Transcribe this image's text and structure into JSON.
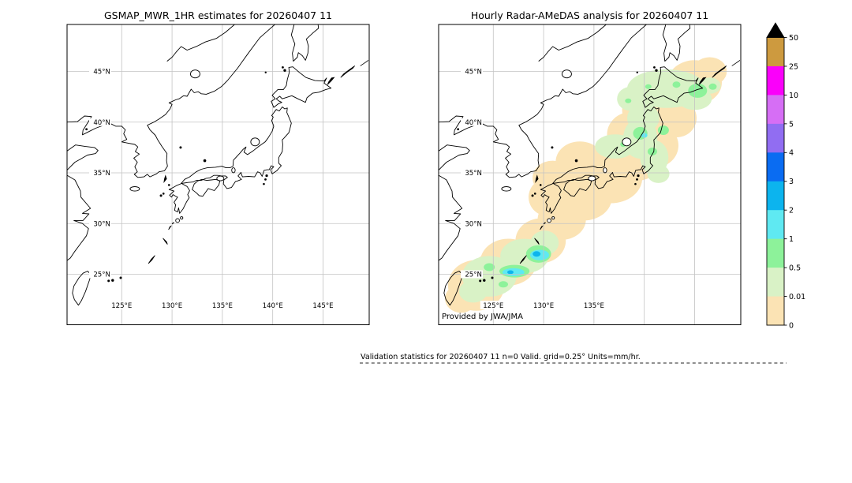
{
  "left_panel": {
    "title": "GSMAP_MWR_1HR estimates for 20260407 11",
    "y_tick_labels": [
      "45°N",
      "40°N",
      "35°N",
      "30°N",
      "25°N"
    ],
    "x_tick_labels": [
      "125°E",
      "130°E",
      "135°E",
      "140°E",
      "145°E"
    ]
  },
  "right_panel": {
    "title": "Hourly Radar-AMeDAS analysis for 20260407 11",
    "y_tick_labels": [
      "45°N",
      "40°N",
      "35°N",
      "30°N",
      "25°N"
    ],
    "x_tick_labels": [
      "125°E",
      "130°E",
      "135°E"
    ],
    "credit": "Provided by JWA/JMA"
  },
  "caption": {
    "text": "Validation statistics for 20260407 11  n=0 Valid. grid=0.25° Units=mm/hr."
  },
  "colorbar": {
    "tick_labels": [
      "50",
      "25",
      "10",
      "5",
      "4",
      "3",
      "2",
      "1",
      "0.5",
      "0.01",
      "0"
    ],
    "segment_colors_top_to_bottom": [
      "#cd9a3f",
      "#fa00fa",
      "#d66ef5",
      "#916df2",
      "#0a6cf2",
      "#0cb4ee",
      "#5fe9f2",
      "#8df29a",
      "#d9f2c6",
      "#fbe3b4"
    ],
    "overflow_triangle_color": "#000000",
    "outline_color": "#000000"
  },
  "chart_data": {
    "type": "heatmap",
    "title_left": "GSMAP_MWR_1HR estimates for 20260407 11",
    "title_right": "Hourly Radar-AMeDAS analysis for 20260407 11",
    "description": "Two map panels over Japan on identical plate-carree grids. Left panel (GSMaP MWR 1HR estimates) shows no precipitation (empty map, n=0). Right panel (Hourly Radar-AMeDAS analysis) shows a SW-NE precipitation band from the Ryukyu Islands across Kyushu/Honshu to Hokkaido.",
    "projection": {
      "lon_range": [
        119.6,
        149.6
      ],
      "lat_range": [
        20.0,
        49.6
      ],
      "grid_on": true
    },
    "x_ticks": {
      "values_deg_east": [
        125,
        130,
        135,
        140,
        145
      ],
      "labels": [
        "125°E",
        "130°E",
        "135°E",
        "140°E",
        "145°E"
      ]
    },
    "y_ticks": {
      "values_deg_north": [
        45,
        40,
        35,
        30,
        25
      ],
      "labels": [
        "45°N",
        "40°N",
        "35°N",
        "30°N",
        "25°N"
      ]
    },
    "colorbar": {
      "units": "mm/hr",
      "levels": [
        0,
        0.01,
        0.5,
        1,
        2,
        3,
        4,
        5,
        10,
        25,
        50
      ],
      "colors_bottom_to_top": [
        "#fbe3b4",
        "#d9f2c6",
        "#8df29a",
        "#5fe9f2",
        "#0cb4ee",
        "#0a6cf2",
        "#916df2",
        "#d66ef5",
        "#fa00fa",
        "#cd9a3f"
      ],
      "overflow_above_50": "#000000"
    },
    "precip": {
      "note": "Filled-contour regions of right panel approximated as ellipses [lon_deg_E, lat_deg_N, rx_deg, ry_deg], drawn in listed order.",
      "levels": [
        {
          "range_mm_hr": "0-0.01",
          "color": "#fbe3b4",
          "ellipses": [
            [
              123.3,
              23.9,
              2.8,
              2.5
            ],
            [
              121.8,
              22.6,
              1.6,
              1.4
            ],
            [
              126.5,
              26.2,
              2.8,
              2.3
            ],
            [
              129.7,
              28.3,
              2.5,
              2.2
            ],
            [
              131.8,
              30.4,
              2.4,
              2.0
            ],
            [
              130.5,
              32.6,
              2.0,
              1.9
            ],
            [
              134.0,
              32.6,
              2.8,
              2.3
            ],
            [
              136.7,
              34.5,
              3.1,
              2.5
            ],
            [
              139.1,
              36.5,
              2.8,
              2.3
            ],
            [
              138.7,
              38.8,
              2.4,
              2.2
            ],
            [
              141.0,
              37.7,
              2.4,
              2.2
            ],
            [
              140.3,
              41.2,
              2.5,
              2.3
            ],
            [
              142.6,
              42.7,
              2.8,
              2.3
            ],
            [
              145.0,
              43.9,
              2.7,
              2.2
            ],
            [
              143.2,
              40.4,
              2.0,
              1.9
            ],
            [
              146.5,
              45.0,
              1.7,
              1.4
            ],
            [
              125.0,
              25.2,
              2.2,
              1.9
            ],
            [
              133.6,
              36.1,
              2.4,
              2.0
            ],
            [
              130.9,
              34.5,
              2.0,
              1.7
            ]
          ]
        },
        {
          "range_mm_hr": "0.01-0.5",
          "color": "#d9f2c6",
          "ellipses": [
            [
              124.6,
              24.8,
              2.7,
              2.0
            ],
            [
              128.1,
              26.8,
              2.4,
              1.7
            ],
            [
              123.0,
              23.3,
              1.4,
              1.1
            ],
            [
              130.1,
              28.1,
              1.4,
              1.2
            ],
            [
              142.2,
              43.3,
              3.9,
              1.9
            ],
            [
              138.7,
              42.3,
              1.4,
              1.2
            ],
            [
              139.6,
              38.4,
              1.7,
              2.0
            ],
            [
              141.0,
              36.5,
              1.4,
              1.7
            ],
            [
              145.0,
              42.3,
              1.7,
              1.1
            ],
            [
              146.5,
              43.6,
              1.1,
              0.8
            ],
            [
              141.4,
              34.9,
              1.1,
              0.9
            ],
            [
              139.9,
              40.4,
              1.6,
              1.4
            ],
            [
              137.1,
              37.6,
              2.0,
              1.2
            ]
          ]
        },
        {
          "range_mm_hr": "0.5-1",
          "color": "#8df29a",
          "ellipses": [
            [
              129.5,
              27.0,
              1.25,
              0.86
            ],
            [
              127.1,
              25.3,
              1.5,
              0.62
            ],
            [
              124.6,
              25.7,
              0.55,
              0.39
            ],
            [
              126.0,
              24.0,
              0.47,
              0.31
            ],
            [
              145.3,
              43.1,
              0.94,
              0.7
            ],
            [
              143.2,
              43.7,
              0.39,
              0.31
            ],
            [
              140.4,
              43.5,
              0.31,
              0.23
            ],
            [
              139.6,
              38.9,
              0.71,
              0.62
            ],
            [
              141.9,
              39.2,
              0.55,
              0.47
            ],
            [
              140.8,
              37.1,
              0.47,
              0.39
            ],
            [
              138.4,
              42.1,
              0.31,
              0.23
            ],
            [
              146.8,
              43.5,
              0.39,
              0.31
            ],
            [
              137.9,
              37.8,
              0.28,
              0.24
            ]
          ]
        },
        {
          "range_mm_hr": "1-2",
          "color": "#5fe9f2",
          "ellipses": [
            [
              129.6,
              26.9,
              0.94,
              0.51
            ],
            [
              127.0,
              25.2,
              1.1,
              0.39
            ],
            [
              140.0,
              38.7,
              0.31,
              0.23
            ]
          ]
        },
        {
          "range_mm_hr": "2-3",
          "color": "#0cb4ee",
          "ellipses": [
            [
              129.3,
              27.0,
              0.39,
              0.27
            ],
            [
              126.7,
              25.2,
              0.31,
              0.19
            ]
          ]
        }
      ]
    },
    "stats": {
      "n": 0,
      "grid": "0.25°",
      "units": "mm/hr"
    }
  }
}
